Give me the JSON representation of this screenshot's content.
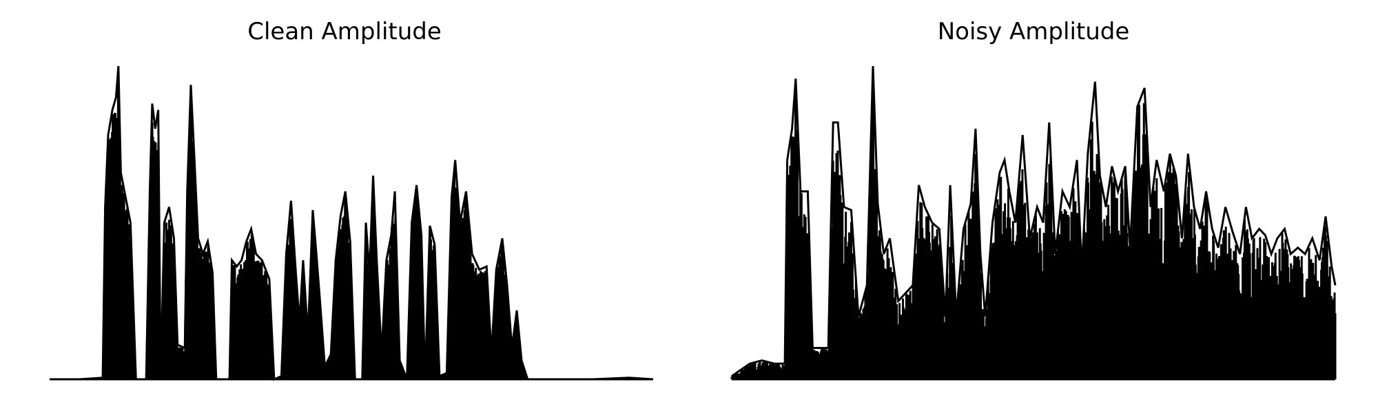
{
  "chart_data": [
    {
      "type": "line",
      "title": "Clean Amplitude",
      "xlabel": "",
      "ylabel": "",
      "axes_visible": false,
      "grid": false,
      "color": "#000000",
      "series": [
        {
          "segments": [
            {
              "pos": 0.0,
              "v": 0.0
            },
            {
              "pos": 0.05,
              "v": 0.0
            },
            {
              "pos": 0.088,
              "v": 0.005
            },
            {
              "pos": 0.092,
              "v": 0.55
            },
            {
              "pos": 0.097,
              "v": 0.78
            },
            {
              "pos": 0.104,
              "v": 0.86
            },
            {
              "pos": 0.11,
              "v": 0.9
            },
            {
              "pos": 0.114,
              "v": 1.0
            },
            {
              "pos": 0.118,
              "v": 0.66
            },
            {
              "pos": 0.126,
              "v": 0.58
            },
            {
              "pos": 0.134,
              "v": 0.5
            },
            {
              "pos": 0.143,
              "v": 0.0
            },
            {
              "pos": 0.16,
              "v": 0.0
            },
            {
              "pos": 0.166,
              "v": 0.6
            },
            {
              "pos": 0.17,
              "v": 0.88
            },
            {
              "pos": 0.175,
              "v": 0.8
            },
            {
              "pos": 0.18,
              "v": 0.86
            },
            {
              "pos": 0.184,
              "v": 0.0
            },
            {
              "pos": 0.19,
              "v": 0.5
            },
            {
              "pos": 0.198,
              "v": 0.55
            },
            {
              "pos": 0.206,
              "v": 0.45
            },
            {
              "pos": 0.212,
              "v": 0.11
            },
            {
              "pos": 0.224,
              "v": 0.1
            },
            {
              "pos": 0.228,
              "v": 0.6
            },
            {
              "pos": 0.234,
              "v": 0.94
            },
            {
              "pos": 0.24,
              "v": 0.7
            },
            {
              "pos": 0.246,
              "v": 0.45
            },
            {
              "pos": 0.254,
              "v": 0.4
            },
            {
              "pos": 0.262,
              "v": 0.44
            },
            {
              "pos": 0.27,
              "v": 0.34
            },
            {
              "pos": 0.276,
              "v": 0.0
            },
            {
              "pos": 0.298,
              "v": 0.0
            },
            {
              "pos": 0.302,
              "v": 0.38
            },
            {
              "pos": 0.31,
              "v": 0.36
            },
            {
              "pos": 0.318,
              "v": 0.38
            },
            {
              "pos": 0.326,
              "v": 0.44
            },
            {
              "pos": 0.334,
              "v": 0.48
            },
            {
              "pos": 0.342,
              "v": 0.4
            },
            {
              "pos": 0.352,
              "v": 0.38
            },
            {
              "pos": 0.364,
              "v": 0.32
            },
            {
              "pos": 0.372,
              "v": 0.0
            },
            {
              "pos": 0.384,
              "v": 0.01
            },
            {
              "pos": 0.392,
              "v": 0.4
            },
            {
              "pos": 0.4,
              "v": 0.57
            },
            {
              "pos": 0.408,
              "v": 0.34
            },
            {
              "pos": 0.414,
              "v": 0.18
            },
            {
              "pos": 0.42,
              "v": 0.38
            },
            {
              "pos": 0.428,
              "v": 0.14
            },
            {
              "pos": 0.436,
              "v": 0.54
            },
            {
              "pos": 0.442,
              "v": 0.4
            },
            {
              "pos": 0.448,
              "v": 0.25
            },
            {
              "pos": 0.456,
              "v": 0.04
            },
            {
              "pos": 0.466,
              "v": 0.08
            },
            {
              "pos": 0.474,
              "v": 0.38
            },
            {
              "pos": 0.482,
              "v": 0.52
            },
            {
              "pos": 0.49,
              "v": 0.6
            },
            {
              "pos": 0.498,
              "v": 0.44
            },
            {
              "pos": 0.506,
              "v": 0.0
            },
            {
              "pos": 0.518,
              "v": 0.0
            },
            {
              "pos": 0.524,
              "v": 0.5
            },
            {
              "pos": 0.53,
              "v": 0.34
            },
            {
              "pos": 0.536,
              "v": 0.65
            },
            {
              "pos": 0.542,
              "v": 0.38
            },
            {
              "pos": 0.55,
              "v": 0.08
            },
            {
              "pos": 0.558,
              "v": 0.38
            },
            {
              "pos": 0.566,
              "v": 0.46
            },
            {
              "pos": 0.572,
              "v": 0.6
            },
            {
              "pos": 0.58,
              "v": 0.06
            },
            {
              "pos": 0.592,
              "v": 0.0
            },
            {
              "pos": 0.6,
              "v": 0.5
            },
            {
              "pos": 0.608,
              "v": 0.62
            },
            {
              "pos": 0.616,
              "v": 0.46
            },
            {
              "pos": 0.622,
              "v": 0.0
            },
            {
              "pos": 0.63,
              "v": 0.49
            },
            {
              "pos": 0.638,
              "v": 0.43
            },
            {
              "pos": 0.646,
              "v": 0.01
            },
            {
              "pos": 0.658,
              "v": 0.02
            },
            {
              "pos": 0.666,
              "v": 0.58
            },
            {
              "pos": 0.672,
              "v": 0.7
            },
            {
              "pos": 0.68,
              "v": 0.5
            },
            {
              "pos": 0.69,
              "v": 0.6
            },
            {
              "pos": 0.7,
              "v": 0.4
            },
            {
              "pos": 0.712,
              "v": 0.35
            },
            {
              "pos": 0.724,
              "v": 0.36
            },
            {
              "pos": 0.732,
              "v": 0.08
            },
            {
              "pos": 0.74,
              "v": 0.35
            },
            {
              "pos": 0.75,
              "v": 0.45
            },
            {
              "pos": 0.758,
              "v": 0.3
            },
            {
              "pos": 0.766,
              "v": 0.1
            },
            {
              "pos": 0.774,
              "v": 0.22
            },
            {
              "pos": 0.782,
              "v": 0.06
            },
            {
              "pos": 0.792,
              "v": 0.0
            },
            {
              "pos": 0.9,
              "v": 0.0
            },
            {
              "pos": 0.96,
              "v": 0.005
            },
            {
              "pos": 1.0,
              "v": 0.0
            }
          ]
        }
      ]
    },
    {
      "type": "line",
      "title": "Noisy Amplitude",
      "xlabel": "",
      "ylabel": "",
      "axes_visible": false,
      "grid": false,
      "color": "#000000",
      "series": [
        {
          "segments": [
            {
              "pos": 0.0,
              "v": 0.01
            },
            {
              "pos": 0.03,
              "v": 0.05
            },
            {
              "pos": 0.05,
              "v": 0.06
            },
            {
              "pos": 0.07,
              "v": 0.05
            },
            {
              "pos": 0.088,
              "v": 0.05
            },
            {
              "pos": 0.092,
              "v": 0.7
            },
            {
              "pos": 0.1,
              "v": 0.8
            },
            {
              "pos": 0.106,
              "v": 0.96
            },
            {
              "pos": 0.114,
              "v": 0.6
            },
            {
              "pos": 0.126,
              "v": 0.6
            },
            {
              "pos": 0.134,
              "v": 0.1
            },
            {
              "pos": 0.16,
              "v": 0.1
            },
            {
              "pos": 0.168,
              "v": 0.82
            },
            {
              "pos": 0.176,
              "v": 0.82
            },
            {
              "pos": 0.186,
              "v": 0.55
            },
            {
              "pos": 0.198,
              "v": 0.54
            },
            {
              "pos": 0.21,
              "v": 0.2
            },
            {
              "pos": 0.224,
              "v": 0.3
            },
            {
              "pos": 0.234,
              "v": 1.0
            },
            {
              "pos": 0.242,
              "v": 0.56
            },
            {
              "pos": 0.252,
              "v": 0.4
            },
            {
              "pos": 0.262,
              "v": 0.45
            },
            {
              "pos": 0.276,
              "v": 0.25
            },
            {
              "pos": 0.3,
              "v": 0.3
            },
            {
              "pos": 0.31,
              "v": 0.62
            },
            {
              "pos": 0.32,
              "v": 0.55
            },
            {
              "pos": 0.332,
              "v": 0.5
            },
            {
              "pos": 0.344,
              "v": 0.48
            },
            {
              "pos": 0.354,
              "v": 0.2
            },
            {
              "pos": 0.362,
              "v": 0.62
            },
            {
              "pos": 0.372,
              "v": 0.2
            },
            {
              "pos": 0.384,
              "v": 0.48
            },
            {
              "pos": 0.396,
              "v": 0.56
            },
            {
              "pos": 0.404,
              "v": 0.8
            },
            {
              "pos": 0.412,
              "v": 0.4
            },
            {
              "pos": 0.42,
              "v": 0.2
            },
            {
              "pos": 0.432,
              "v": 0.5
            },
            {
              "pos": 0.444,
              "v": 0.66
            },
            {
              "pos": 0.452,
              "v": 0.7
            },
            {
              "pos": 0.46,
              "v": 0.6
            },
            {
              "pos": 0.47,
              "v": 0.5
            },
            {
              "pos": 0.482,
              "v": 0.78
            },
            {
              "pos": 0.494,
              "v": 0.45
            },
            {
              "pos": 0.506,
              "v": 0.55
            },
            {
              "pos": 0.516,
              "v": 0.5
            },
            {
              "pos": 0.526,
              "v": 0.82
            },
            {
              "pos": 0.536,
              "v": 0.4
            },
            {
              "pos": 0.548,
              "v": 0.6
            },
            {
              "pos": 0.56,
              "v": 0.55
            },
            {
              "pos": 0.572,
              "v": 0.7
            },
            {
              "pos": 0.58,
              "v": 0.35
            },
            {
              "pos": 0.59,
              "v": 0.72
            },
            {
              "pos": 0.602,
              "v": 0.95
            },
            {
              "pos": 0.61,
              "v": 0.65
            },
            {
              "pos": 0.62,
              "v": 0.55
            },
            {
              "pos": 0.63,
              "v": 0.68
            },
            {
              "pos": 0.64,
              "v": 0.6
            },
            {
              "pos": 0.652,
              "v": 0.68
            },
            {
              "pos": 0.66,
              "v": 0.42
            },
            {
              "pos": 0.672,
              "v": 0.87
            },
            {
              "pos": 0.684,
              "v": 0.93
            },
            {
              "pos": 0.694,
              "v": 0.55
            },
            {
              "pos": 0.704,
              "v": 0.7
            },
            {
              "pos": 0.716,
              "v": 0.6
            },
            {
              "pos": 0.726,
              "v": 0.72
            },
            {
              "pos": 0.736,
              "v": 0.65
            },
            {
              "pos": 0.746,
              "v": 0.45
            },
            {
              "pos": 0.756,
              "v": 0.72
            },
            {
              "pos": 0.766,
              "v": 0.55
            },
            {
              "pos": 0.776,
              "v": 0.48
            },
            {
              "pos": 0.786,
              "v": 0.6
            },
            {
              "pos": 0.796,
              "v": 0.48
            },
            {
              "pos": 0.806,
              "v": 0.42
            },
            {
              "pos": 0.818,
              "v": 0.55
            },
            {
              "pos": 0.83,
              "v": 0.47
            },
            {
              "pos": 0.842,
              "v": 0.4
            },
            {
              "pos": 0.852,
              "v": 0.55
            },
            {
              "pos": 0.862,
              "v": 0.45
            },
            {
              "pos": 0.874,
              "v": 0.48
            },
            {
              "pos": 0.884,
              "v": 0.46
            },
            {
              "pos": 0.894,
              "v": 0.4
            },
            {
              "pos": 0.904,
              "v": 0.45
            },
            {
              "pos": 0.916,
              "v": 0.48
            },
            {
              "pos": 0.926,
              "v": 0.4
            },
            {
              "pos": 0.938,
              "v": 0.42
            },
            {
              "pos": 0.95,
              "v": 0.4
            },
            {
              "pos": 0.962,
              "v": 0.45
            },
            {
              "pos": 0.974,
              "v": 0.38
            },
            {
              "pos": 0.984,
              "v": 0.52
            },
            {
              "pos": 0.994,
              "v": 0.36
            },
            {
              "pos": 1.0,
              "v": 0.3
            }
          ]
        }
      ]
    }
  ]
}
